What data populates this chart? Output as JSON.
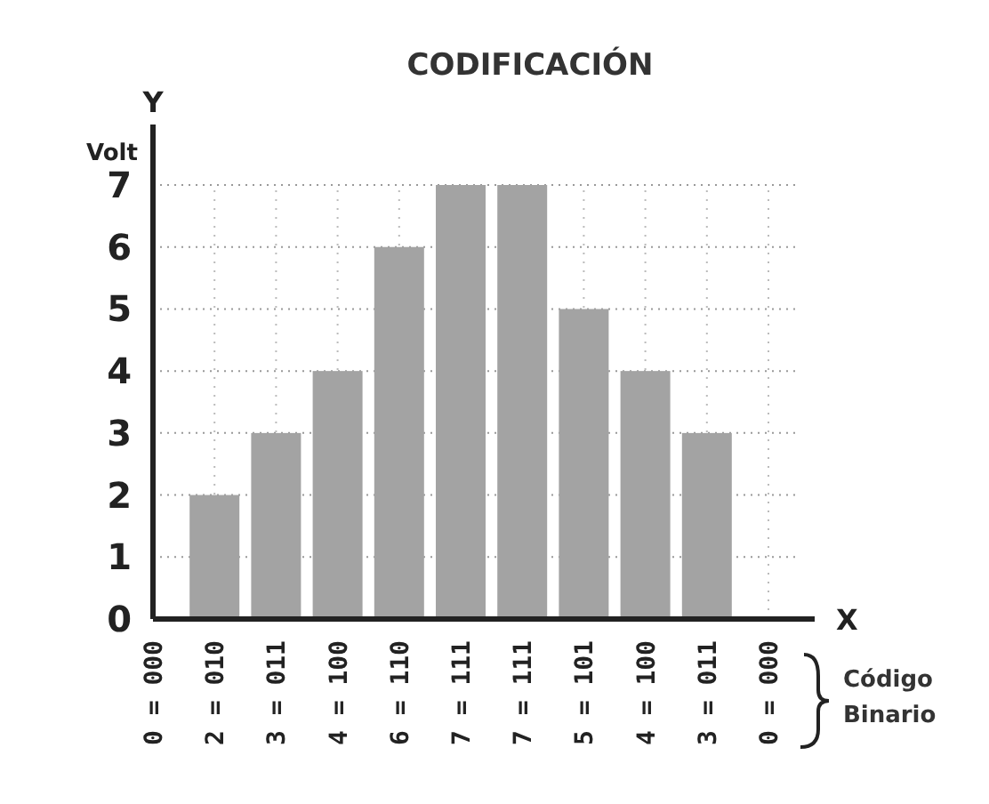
{
  "chart_data": {
    "type": "bar",
    "title": "CODIFICACIÓN",
    "xlabel": "X",
    "ylabel": "Volt",
    "categories": [
      "0 = 000",
      "2 = 010",
      "3 = 011",
      "4 = 100",
      "6 = 110",
      "7 = 111",
      "7 = 111",
      "5 = 101",
      "4 = 100",
      "3 = 011",
      "0 = 000"
    ],
    "values": [
      0,
      2,
      3,
      4,
      6,
      7,
      7,
      5,
      4,
      3,
      0
    ],
    "color": "#a3a3a3",
    "ylim": [
      0,
      7
    ],
    "yticks": [
      0,
      1,
      2,
      3,
      4,
      5,
      6,
      7
    ],
    "grid": true,
    "annotations": [
      "Y",
      "Código Binario"
    ]
  }
}
